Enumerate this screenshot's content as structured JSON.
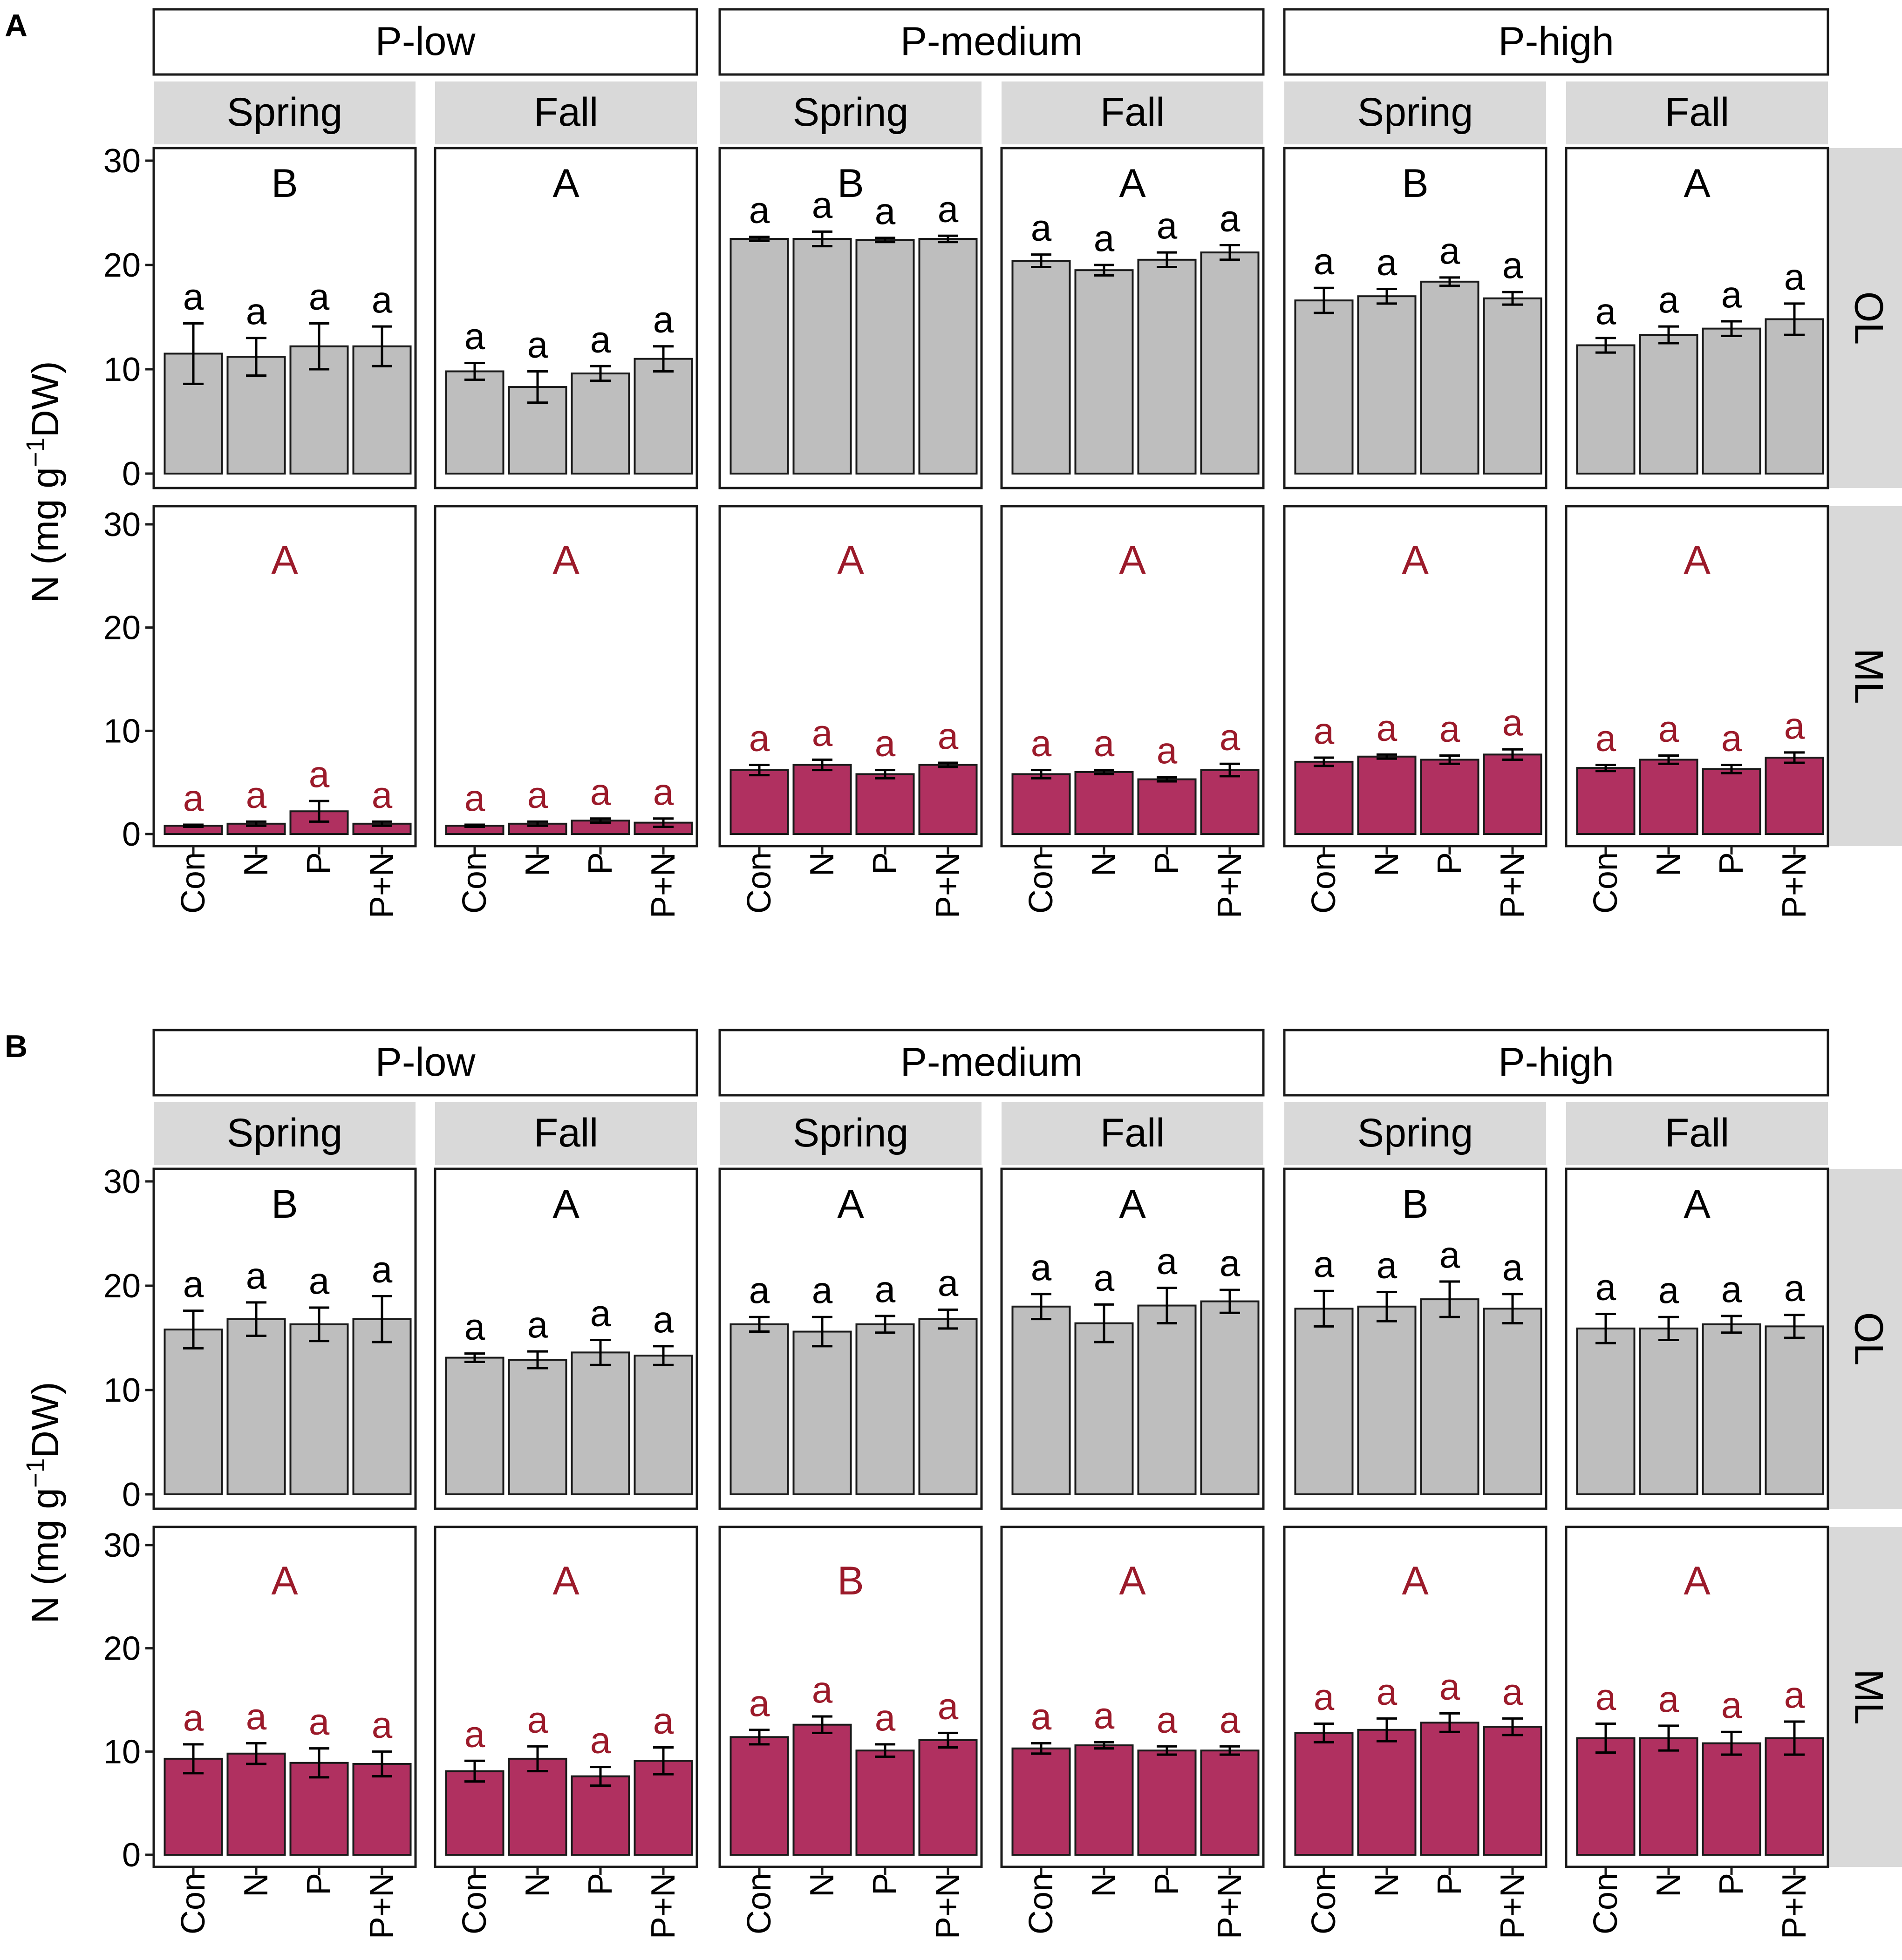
{
  "colors": {
    "OL_bar": "#bebebe",
    "ML_bar": "#b03060",
    "OL_text": "#000000",
    "ML_text": "#9b1a2a",
    "strip_fill": "#d9d9d9",
    "border": "#1a1a1a"
  },
  "chart_data": [
    {
      "panel_label": "A",
      "type": "bar",
      "ylabel_parts": {
        "prefix": "N (mg g",
        "superscript": "−1",
        "suffix": "DW)"
      },
      "ylim": [
        0,
        30
      ],
      "yticks": [
        "0",
        "10",
        "20",
        "30"
      ],
      "categories": [
        "Con",
        "N",
        "P",
        "P+N"
      ],
      "strips_top": [
        "P-low",
        "P-medium",
        "P-high"
      ],
      "strips_season": [
        "Spring",
        "Fall"
      ],
      "strips_row": [
        "OL",
        "ML"
      ],
      "facets": [
        {
          "p": "P-low",
          "season": "Spring",
          "layer": "OL",
          "group_letter": "B",
          "values": [
            11.5,
            11.2,
            12.2,
            12.2
          ],
          "errors": [
            2.9,
            1.8,
            2.2,
            1.9
          ],
          "letters": [
            "a",
            "a",
            "a",
            "a"
          ]
        },
        {
          "p": "P-low",
          "season": "Fall",
          "layer": "OL",
          "group_letter": "A",
          "values": [
            9.8,
            8.3,
            9.6,
            11.0
          ],
          "errors": [
            0.8,
            1.5,
            0.7,
            1.2
          ],
          "letters": [
            "a",
            "a",
            "a",
            "a"
          ]
        },
        {
          "p": "P-medium",
          "season": "Spring",
          "layer": "OL",
          "group_letter": "B",
          "values": [
            22.5,
            22.5,
            22.4,
            22.5
          ],
          "errors": [
            0.2,
            0.7,
            0.2,
            0.3
          ],
          "letters": [
            "a",
            "a",
            "a",
            "a"
          ]
        },
        {
          "p": "P-medium",
          "season": "Fall",
          "layer": "OL",
          "group_letter": "A",
          "values": [
            20.4,
            19.5,
            20.5,
            21.2
          ],
          "errors": [
            0.6,
            0.5,
            0.7,
            0.7
          ],
          "letters": [
            "a",
            "a",
            "a",
            "a"
          ]
        },
        {
          "p": "P-high",
          "season": "Spring",
          "layer": "OL",
          "group_letter": "B",
          "values": [
            16.6,
            17.0,
            18.4,
            16.8
          ],
          "errors": [
            1.2,
            0.7,
            0.4,
            0.6
          ],
          "letters": [
            "a",
            "a",
            "a",
            "a"
          ]
        },
        {
          "p": "P-high",
          "season": "Fall",
          "layer": "OL",
          "group_letter": "A",
          "values": [
            12.3,
            13.3,
            13.9,
            14.8
          ],
          "errors": [
            0.7,
            0.8,
            0.7,
            1.5
          ],
          "letters": [
            "a",
            "a",
            "a",
            "a"
          ]
        },
        {
          "p": "P-low",
          "season": "Spring",
          "layer": "ML",
          "group_letter": "A",
          "values": [
            0.8,
            1.0,
            2.2,
            1.0
          ],
          "errors": [
            0.1,
            0.2,
            1.0,
            0.2
          ],
          "letters": [
            "a",
            "a",
            "a",
            "a"
          ]
        },
        {
          "p": "P-low",
          "season": "Fall",
          "layer": "ML",
          "group_letter": "A",
          "values": [
            0.8,
            1.0,
            1.3,
            1.1
          ],
          "errors": [
            0.1,
            0.2,
            0.2,
            0.4
          ],
          "letters": [
            "a",
            "a",
            "a",
            "a"
          ]
        },
        {
          "p": "P-medium",
          "season": "Spring",
          "layer": "ML",
          "group_letter": "A",
          "values": [
            6.2,
            6.7,
            5.8,
            6.7
          ],
          "errors": [
            0.5,
            0.5,
            0.4,
            0.2
          ],
          "letters": [
            "a",
            "a",
            "a",
            "a"
          ]
        },
        {
          "p": "P-medium",
          "season": "Fall",
          "layer": "ML",
          "group_letter": "A",
          "values": [
            5.8,
            6.0,
            5.3,
            6.2
          ],
          "errors": [
            0.4,
            0.2,
            0.2,
            0.6
          ],
          "letters": [
            "a",
            "a",
            "a",
            "a"
          ]
        },
        {
          "p": "P-high",
          "season": "Spring",
          "layer": "ML",
          "group_letter": "A",
          "values": [
            7.0,
            7.5,
            7.2,
            7.7
          ],
          "errors": [
            0.4,
            0.2,
            0.4,
            0.5
          ],
          "letters": [
            "a",
            "a",
            "a",
            "a"
          ]
        },
        {
          "p": "P-high",
          "season": "Fall",
          "layer": "ML",
          "group_letter": "A",
          "values": [
            6.4,
            7.2,
            6.3,
            7.4
          ],
          "errors": [
            0.3,
            0.4,
            0.4,
            0.5
          ],
          "letters": [
            "a",
            "a",
            "a",
            "a"
          ]
        }
      ]
    },
    {
      "panel_label": "B",
      "type": "bar",
      "ylabel_parts": {
        "prefix": "N (mg g",
        "superscript": "−1",
        "suffix": "DW)"
      },
      "ylim": [
        0,
        30
      ],
      "yticks": [
        "0",
        "10",
        "20",
        "30"
      ],
      "categories": [
        "Con",
        "N",
        "P",
        "P+N"
      ],
      "strips_top": [
        "P-low",
        "P-medium",
        "P-high"
      ],
      "strips_season": [
        "Spring",
        "Fall"
      ],
      "strips_row": [
        "OL",
        "ML"
      ],
      "facets": [
        {
          "p": "P-low",
          "season": "Spring",
          "layer": "OL",
          "group_letter": "B",
          "values": [
            15.8,
            16.8,
            16.3,
            16.8
          ],
          "errors": [
            1.8,
            1.6,
            1.6,
            2.2
          ],
          "letters": [
            "a",
            "a",
            "a",
            "a"
          ]
        },
        {
          "p": "P-low",
          "season": "Fall",
          "layer": "OL",
          "group_letter": "A",
          "values": [
            13.1,
            12.9,
            13.6,
            13.3
          ],
          "errors": [
            0.4,
            0.8,
            1.2,
            0.9
          ],
          "letters": [
            "a",
            "a",
            "a",
            "a"
          ]
        },
        {
          "p": "P-medium",
          "season": "Spring",
          "layer": "OL",
          "group_letter": "A",
          "values": [
            16.3,
            15.6,
            16.3,
            16.8
          ],
          "errors": [
            0.7,
            1.4,
            0.8,
            0.9
          ],
          "letters": [
            "a",
            "a",
            "a",
            "a"
          ]
        },
        {
          "p": "P-medium",
          "season": "Fall",
          "layer": "OL",
          "group_letter": "A",
          "values": [
            18.0,
            16.4,
            18.1,
            18.5
          ],
          "errors": [
            1.2,
            1.8,
            1.7,
            1.1
          ],
          "letters": [
            "a",
            "a",
            "a",
            "a"
          ]
        },
        {
          "p": "P-high",
          "season": "Spring",
          "layer": "OL",
          "group_letter": "B",
          "values": [
            17.8,
            18.0,
            18.7,
            17.8
          ],
          "errors": [
            1.7,
            1.4,
            1.7,
            1.4
          ],
          "letters": [
            "a",
            "a",
            "a",
            "a"
          ]
        },
        {
          "p": "P-high",
          "season": "Fall",
          "layer": "OL",
          "group_letter": "A",
          "values": [
            15.9,
            15.9,
            16.3,
            16.1
          ],
          "errors": [
            1.4,
            1.1,
            0.8,
            1.1
          ],
          "letters": [
            "a",
            "a",
            "a",
            "a"
          ]
        },
        {
          "p": "P-low",
          "season": "Spring",
          "layer": "ML",
          "group_letter": "A",
          "values": [
            9.3,
            9.8,
            8.9,
            8.8
          ],
          "errors": [
            1.4,
            1.0,
            1.4,
            1.2
          ],
          "letters": [
            "a",
            "a",
            "a",
            "a"
          ]
        },
        {
          "p": "P-low",
          "season": "Fall",
          "layer": "ML",
          "group_letter": "A",
          "values": [
            8.1,
            9.3,
            7.6,
            9.1
          ],
          "errors": [
            1.0,
            1.2,
            0.9,
            1.3
          ],
          "letters": [
            "a",
            "a",
            "a",
            "a"
          ]
        },
        {
          "p": "P-medium",
          "season": "Spring",
          "layer": "ML",
          "group_letter": "B",
          "values": [
            11.4,
            12.6,
            10.1,
            11.1
          ],
          "errors": [
            0.7,
            0.8,
            0.6,
            0.7
          ],
          "letters": [
            "a",
            "a",
            "a",
            "a"
          ]
        },
        {
          "p": "P-medium",
          "season": "Fall",
          "layer": "ML",
          "group_letter": "A",
          "values": [
            10.3,
            10.6,
            10.1,
            10.1
          ],
          "errors": [
            0.5,
            0.3,
            0.4,
            0.4
          ],
          "letters": [
            "a",
            "a",
            "a",
            "a"
          ]
        },
        {
          "p": "P-high",
          "season": "Spring",
          "layer": "ML",
          "group_letter": "A",
          "values": [
            11.8,
            12.1,
            12.8,
            12.4
          ],
          "errors": [
            0.9,
            1.1,
            0.9,
            0.8
          ],
          "letters": [
            "a",
            "a",
            "a",
            "a"
          ]
        },
        {
          "p": "P-high",
          "season": "Fall",
          "layer": "ML",
          "group_letter": "A",
          "values": [
            11.3,
            11.3,
            10.8,
            11.3
          ],
          "errors": [
            1.4,
            1.2,
            1.1,
            1.6
          ],
          "letters": [
            "a",
            "a",
            "a",
            "a"
          ]
        }
      ]
    }
  ]
}
